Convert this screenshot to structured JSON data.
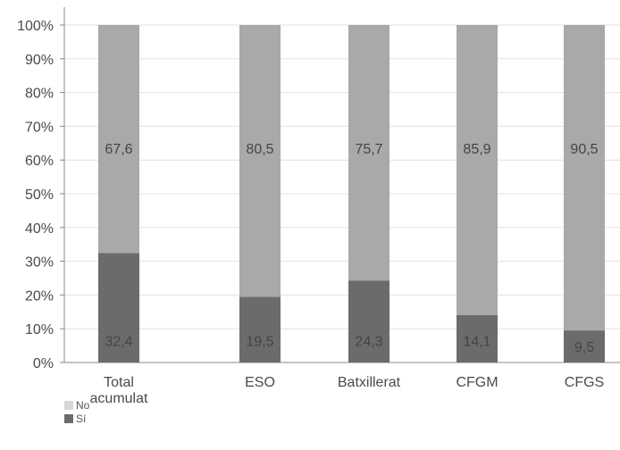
{
  "chart_data": {
    "type": "bar",
    "stacked": true,
    "categories": [
      "Total acumulat",
      "ESO",
      "Batxillerat",
      "CFGM",
      "CFGS"
    ],
    "category_lines": [
      [
        "Total",
        "acumulat"
      ],
      [
        "ESO"
      ],
      [
        "Batxillerat"
      ],
      [
        "CFGM"
      ],
      [
        "CFGS"
      ]
    ],
    "series": [
      {
        "name": "Sí",
        "color": "#6b6b6b",
        "values": [
          32.4,
          19.5,
          24.3,
          14.1,
          9.5
        ],
        "labels": [
          "32,4",
          "19,5",
          "24,3",
          "14,1",
          "9,5"
        ]
      },
      {
        "name": "No",
        "color": "#a9a9a9",
        "values": [
          67.6,
          80.5,
          75.7,
          85.9,
          90.5
        ],
        "labels": [
          "67,6",
          "80,5",
          "75,7",
          "85,9",
          "90,5"
        ]
      }
    ],
    "ylim": [
      0,
      100
    ],
    "yticks": [
      "0%",
      "10%",
      "20%",
      "30%",
      "40%",
      "50%",
      "60%",
      "70%",
      "80%",
      "90%",
      "100%"
    ],
    "grid": true,
    "legend": {
      "position": "bottom-left",
      "items": [
        {
          "label": "No",
          "color": "#d6d6d6"
        },
        {
          "label": "Sí",
          "color": "#6b6b6b"
        }
      ]
    }
  }
}
